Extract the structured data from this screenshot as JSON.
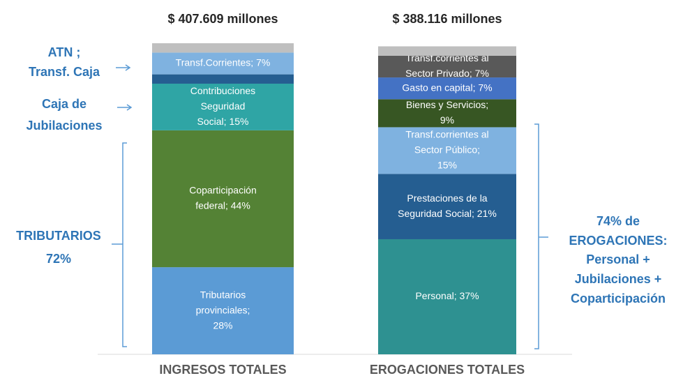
{
  "chart_data": {
    "type": "stacked-bar",
    "ylim": [
      0,
      100
    ],
    "bars": [
      {
        "total_label": "$ 407.609 millones",
        "category": "INGRESOS TOTALES",
        "segments": [
          {
            "label_lines": [
              "Tributarios",
              "provinciales;",
              "28%"
            ],
            "value": 28,
            "color": "#5b9bd5"
          },
          {
            "label_lines": [
              "Coparticipación",
              "federal; 44%"
            ],
            "value": 44,
            "color": "#548235"
          },
          {
            "label_lines": [
              "Contribuciones",
              "Seguridad",
              "Social; 15%"
            ],
            "value": 15,
            "color": "#2fa5a5"
          },
          {
            "label_lines": null,
            "value": 3,
            "color": "#255e91"
          },
          {
            "label_lines": [
              "Transf.Corrientes; 7%"
            ],
            "value": 7,
            "color": "#7fb2e0"
          },
          {
            "label_lines": null,
            "value": 3,
            "color": "#bfbfbf"
          }
        ]
      },
      {
        "total_label": "$ 388.116 millones",
        "category": "EROGACIONES TOTALES",
        "segments": [
          {
            "label_lines": [
              "Personal; 37%"
            ],
            "value": 37,
            "color": "#2e9191"
          },
          {
            "label_lines": [
              "Prestaciones de la",
              "Seguridad Social; 21%"
            ],
            "value": 21,
            "color": "#255e91"
          },
          {
            "label_lines": [
              "Transf.corrientes al",
              "Sector Público;",
              "15%"
            ],
            "value": 15,
            "color": "#7fb2e0"
          },
          {
            "label_lines": [
              "Bienes y Servicios;",
              "9%"
            ],
            "value": 9,
            "color": "#375623"
          },
          {
            "label_lines": [
              "Gasto en capital; 7%"
            ],
            "value": 7,
            "color": "#4472c4"
          },
          {
            "label_lines": [
              "Transf.corrientes al",
              "Sector Privado; 7%"
            ],
            "value": 7,
            "color": "#595959"
          },
          {
            "label_lines": null,
            "value": 3,
            "color": "#bfbfbf"
          }
        ]
      }
    ],
    "annotations": {
      "atn": [
        "ATN ;",
        "Transf. Caja"
      ],
      "caja": [
        "Caja de",
        "Jubilaciones"
      ],
      "tributarios": [
        "TRIBUTARIOS",
        "72%"
      ],
      "erogaciones": [
        "74% de",
        "EROGACIONES:",
        "Personal +",
        "Jubilaciones +",
        "Coparticipación"
      ]
    }
  }
}
